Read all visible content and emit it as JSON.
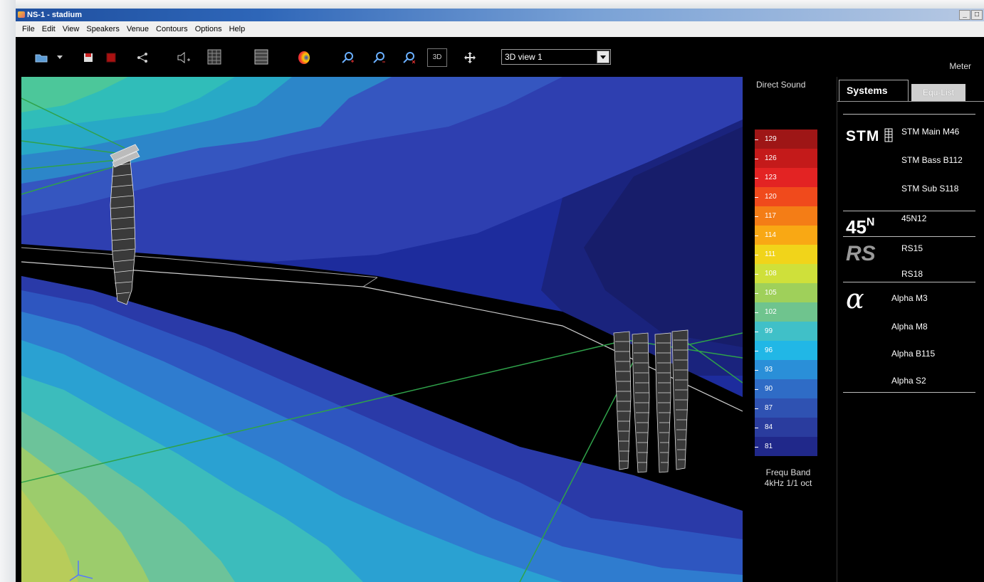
{
  "window": {
    "title": "NS-1 - stadium",
    "controls": [
      "_",
      "□"
    ]
  },
  "menu": [
    "File",
    "Edit",
    "View",
    "Speakers",
    "Venue",
    "Contours",
    "Options",
    "Help"
  ],
  "toolbar": {
    "icons": [
      "open-folder-icon",
      "dropdown-arrow-icon",
      "save-icon",
      "red-square-icon",
      "share-icon",
      "speaker-add-icon",
      "grid-table-icon",
      "table-icon",
      "color-map-icon",
      "zoom-in-icon",
      "zoom-out-icon",
      "zoom-reset-icon",
      "move-icon"
    ],
    "btn_3d": "3D",
    "view_select": "3D view 1",
    "meter_label": "Meter"
  },
  "legend": {
    "title": "Direct Sound",
    "freq_line1": "Frequ Band",
    "freq_line2": "4kHz 1/1 oct",
    "bands": [
      {
        "label": "129",
        "color": "#9e1616"
      },
      {
        "label": "126",
        "color": "#c41a1a"
      },
      {
        "label": "123",
        "color": "#e32323"
      },
      {
        "label": "120",
        "color": "#f04a1c"
      },
      {
        "label": "117",
        "color": "#f47d16"
      },
      {
        "label": "114",
        "color": "#f9a814"
      },
      {
        "label": "111",
        "color": "#f1d41a"
      },
      {
        "label": "108",
        "color": "#cfe03a"
      },
      {
        "label": "105",
        "color": "#9fd05a"
      },
      {
        "label": "102",
        "color": "#6fc48e"
      },
      {
        "label": "99",
        "color": "#40c0c8"
      },
      {
        "label": "96",
        "color": "#21b7e6"
      },
      {
        "label": "93",
        "color": "#2a8fd8"
      },
      {
        "label": "90",
        "color": "#2f6cc6"
      },
      {
        "label": "87",
        "color": "#2f52b2"
      },
      {
        "label": "84",
        "color": "#2a3c9e"
      },
      {
        "label": "81",
        "color": "#20288a"
      }
    ]
  },
  "panel": {
    "tabs": [
      "Systems",
      "Equ-List"
    ],
    "logos": {
      "stm": "STM",
      "n45": "45",
      "n45_sub": "N",
      "rs": "RS",
      "alpha": "α"
    },
    "systems": [
      "STM Main M46",
      "STM Bass B112",
      "STM Sub S118",
      "45N12",
      "RS15",
      "RS18",
      "Alpha M3",
      "Alpha M8",
      "Alpha B115",
      "Alpha S2"
    ]
  },
  "colors": {
    "titlebar": "#2e66b8",
    "viewport_dark": "#1b2a9a",
    "viewport_light": "#40c0c8",
    "grid_lines": "#2fa24a"
  }
}
